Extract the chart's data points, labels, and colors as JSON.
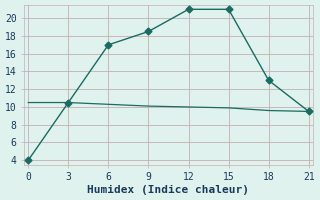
{
  "line1_x": [
    0,
    3,
    6,
    9,
    12,
    15,
    18,
    21
  ],
  "line1_y": [
    4,
    10.5,
    17,
    18.5,
    21,
    21,
    13,
    9.5
  ],
  "line2_x": [
    0,
    3,
    6,
    9,
    12,
    15,
    18,
    21
  ],
  "line2_y": [
    10.5,
    10.5,
    10.3,
    10.1,
    10.0,
    9.9,
    9.6,
    9.5
  ],
  "line_color": "#1a6b62",
  "bg_color": "#dff2ee",
  "grid_color": "#c4b0b0",
  "xlabel": "Humidex (Indice chaleur)",
  "xlabel_fontsize": 8,
  "xticks": [
    0,
    3,
    6,
    9,
    12,
    15,
    18,
    21
  ],
  "yticks": [
    4,
    6,
    8,
    10,
    12,
    14,
    16,
    18,
    20
  ],
  "ylim": [
    3.5,
    21.5
  ],
  "xlim": [
    -0.3,
    21.3
  ],
  "marker": "D",
  "marker_size": 3.5,
  "tick_fontsize": 7,
  "text_color": "#1a3a5c",
  "linewidth1": 1.0,
  "linewidth2": 0.9
}
